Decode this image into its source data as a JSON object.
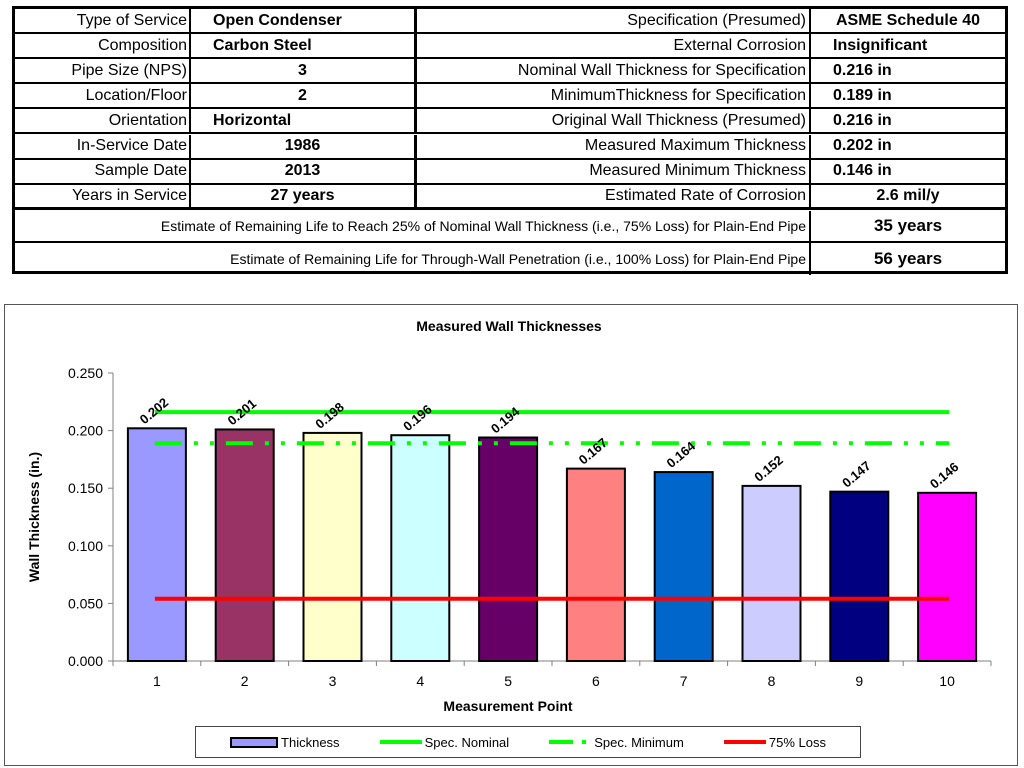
{
  "table": {
    "left_rows": [
      {
        "label": "Type of Service",
        "value": "Open Condenser"
      },
      {
        "label": "Composition",
        "value": "Carbon Steel"
      },
      {
        "label": "Pipe Size (NPS)",
        "value": "3"
      },
      {
        "label": "Location/Floor",
        "value": "2"
      },
      {
        "label": "Orientation",
        "value": "Horizontal"
      },
      {
        "label": "In-Service Date",
        "value": "1986"
      },
      {
        "label": "Sample Date",
        "value": "2013"
      },
      {
        "label": "Years in Service",
        "value": "27 years"
      }
    ],
    "right_rows": [
      {
        "label": "Specification (Presumed)",
        "value": "ASME Schedule 40"
      },
      {
        "label": "External Corrosion",
        "value": "Insignificant"
      },
      {
        "label": "Nominal Wall Thickness for Specification",
        "value": "0.216  in"
      },
      {
        "label": "MinimumThickness for Specification",
        "value": "0.189  in"
      },
      {
        "label": "Original Wall Thickness (Presumed)",
        "value": "0.216  in"
      },
      {
        "label": "Measured Maximum Thickness",
        "value": "0.202  in"
      },
      {
        "label": "Measured Minimum Thickness",
        "value": "0.146  in"
      },
      {
        "label": "Estimated Rate of Corrosion",
        "value": "2.6  mil/y"
      }
    ],
    "summary_rows": [
      {
        "label": "Estimate of Remaining Life to Reach 25% of Nominal Wall Thickness (i.e., 75% Loss) for Plain-End Pipe",
        "value": "35 years"
      },
      {
        "label": "Estimate of Remaining Life for Through-Wall Penetration (i.e., 100% Loss) for Plain-End Pipe",
        "value": "56 years"
      }
    ]
  },
  "chart_data": {
    "type": "bar",
    "title": "Measured Wall Thicknesses",
    "xlabel": "Measurement Point",
    "ylabel": "Wall Thickness (in.)",
    "ylim": [
      0,
      0.25
    ],
    "yticks": [
      "0.000",
      "0.050",
      "0.100",
      "0.150",
      "0.200",
      "0.250"
    ],
    "ytick_values": [
      0,
      0.05,
      0.1,
      0.15,
      0.2,
      0.25
    ],
    "grid": false,
    "categories": [
      "1",
      "2",
      "3",
      "4",
      "5",
      "6",
      "7",
      "8",
      "9",
      "10"
    ],
    "series": [
      {
        "name": "Thickness",
        "type": "bar",
        "values": [
          0.202,
          0.201,
          0.198,
          0.196,
          0.194,
          0.167,
          0.164,
          0.152,
          0.147,
          0.146
        ],
        "labels": [
          "0.202",
          "0.201",
          "0.198",
          "0.196",
          "0.194",
          "0.167",
          "0.164",
          "0.152",
          "0.147",
          "0.146"
        ],
        "colors": [
          "#9999ff",
          "#993366",
          "#ffffcc",
          "#ccffff",
          "#660066",
          "#ff8080",
          "#0066cc",
          "#ccccff",
          "#000080",
          "#ff00ff"
        ]
      },
      {
        "name": "Spec. Nominal",
        "type": "line",
        "value": 0.216,
        "color": "#00ff00",
        "style": "solid"
      },
      {
        "name": "Spec. Minimum",
        "type": "line",
        "value": 0.189,
        "color": "#00ff00",
        "style": "dash-dot-dot"
      },
      {
        "name": "75% Loss",
        "type": "line",
        "value": 0.054,
        "color": "#ff0000",
        "style": "solid"
      }
    ],
    "legend_position": "bottom"
  }
}
